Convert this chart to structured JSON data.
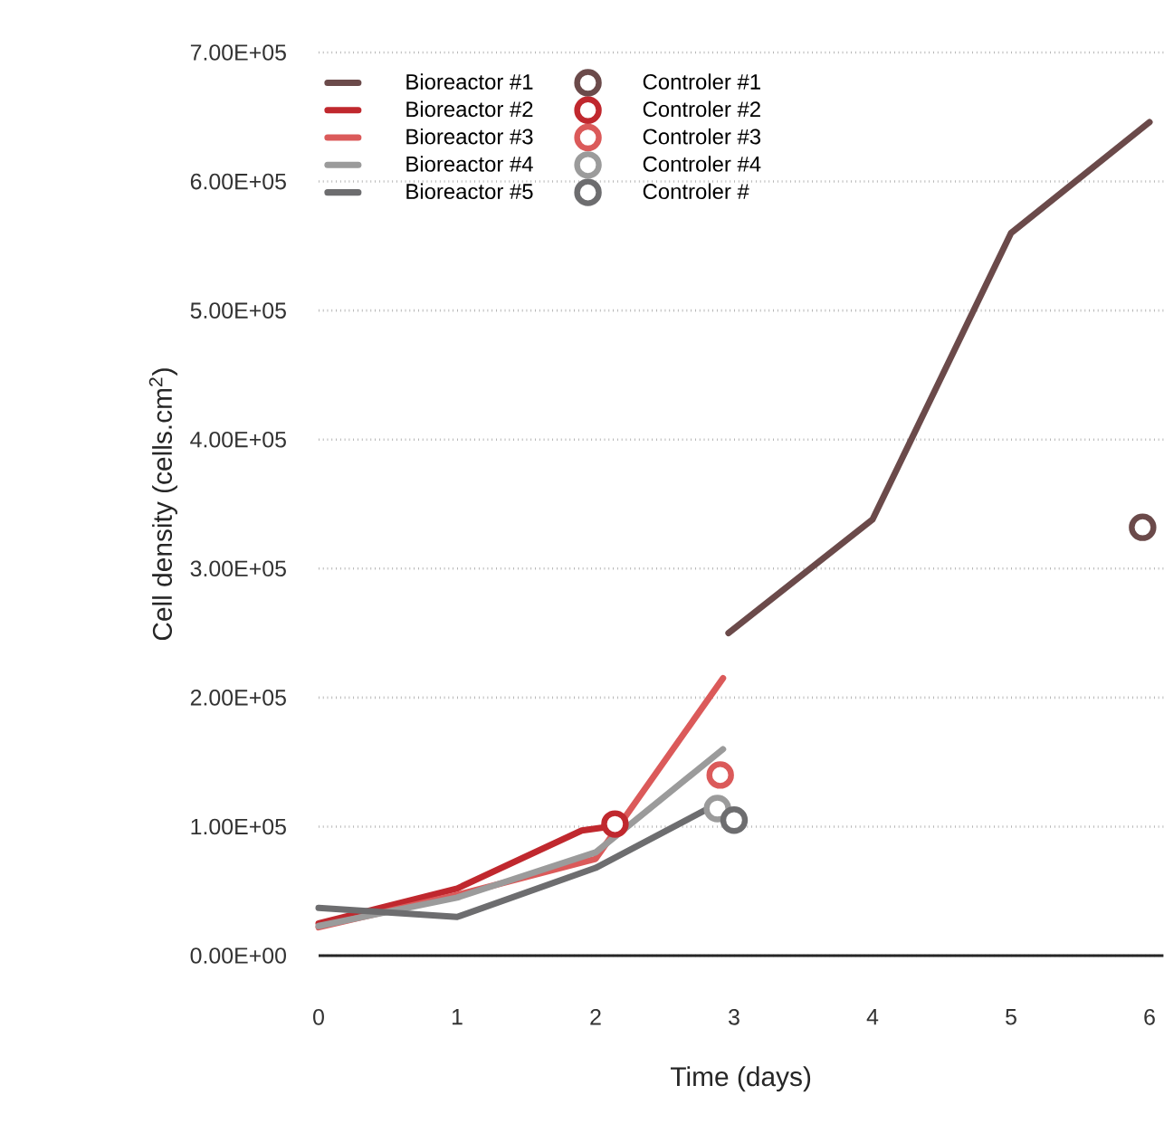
{
  "chart_data": {
    "type": "line",
    "xlabel": "Time (days)",
    "ylabel": "Cell density (cells.cm$^{2}$)",
    "xlim": [
      0,
      6.1
    ],
    "ylim": [
      0,
      700000
    ],
    "xticks": [
      0,
      1,
      2,
      3,
      4,
      5,
      6
    ],
    "yticks": [
      {
        "value": 0,
        "label": "0.00E+00"
      },
      {
        "value": 100000,
        "label": "1.00E+05"
      },
      {
        "value": 200000,
        "label": "2.00E+05"
      },
      {
        "value": 300000,
        "label": "3.00E+05"
      },
      {
        "value": 400000,
        "label": "4.00E+05"
      },
      {
        "value": 500000,
        "label": "5.00E+05"
      },
      {
        "value": 600000,
        "label": "6.00E+05"
      },
      {
        "value": 700000,
        "label": "7.00E+05"
      }
    ],
    "grid": "y",
    "legend": "top left",
    "line_style": "solid",
    "series": [
      {
        "name": "Bioreactor #1",
        "type": "line",
        "color": "#6b4a4a",
        "x": [
          2.96,
          4,
          5,
          6
        ],
        "values": [
          250000,
          338000,
          560000,
          646000
        ]
      },
      {
        "name": "Bioreactor #2",
        "type": "line",
        "color": "#c0282e",
        "x": [
          0,
          1,
          1.9,
          2.1
        ],
        "values": [
          25000,
          52000,
          97000,
          100000
        ]
      },
      {
        "name": "Bioreactor #3",
        "type": "line",
        "color": "#db5a5a",
        "x": [
          0,
          1,
          2,
          2.92
        ],
        "values": [
          22000,
          47000,
          75000,
          215000
        ]
      },
      {
        "name": "Bioreactor #4",
        "type": "line",
        "color": "#9b9b9b",
        "x": [
          0,
          1,
          2,
          2.92
        ],
        "values": [
          23000,
          45000,
          80000,
          160000
        ]
      },
      {
        "name": "Bioreactor #5",
        "type": "line",
        "color": "#6d6d6f",
        "x": [
          0,
          1,
          2,
          2.92
        ],
        "values": [
          37000,
          30000,
          68000,
          120000
        ]
      },
      {
        "name": "Controler  #1",
        "type": "scatter",
        "marker": "circle",
        "color": "#6b4a4a",
        "x": [
          5.95
        ],
        "values": [
          332000
        ]
      },
      {
        "name": "Controler #2",
        "type": "scatter",
        "marker": "circle",
        "color": "#c0282e",
        "x": [
          2.14
        ],
        "values": [
          102000
        ]
      },
      {
        "name": "Controler #3",
        "type": "scatter",
        "marker": "circle",
        "color": "#db5a5a",
        "x": [
          2.9
        ],
        "values": [
          140000
        ]
      },
      {
        "name": "Controler #4",
        "type": "scatter",
        "marker": "circle",
        "color": "#9b9b9b",
        "x": [
          2.88
        ],
        "values": [
          114000
        ]
      },
      {
        "name": "Controler #",
        "type": "scatter",
        "marker": "circle",
        "color": "#6d6d6f",
        "x": [
          3.0
        ],
        "values": [
          105000
        ]
      }
    ]
  }
}
